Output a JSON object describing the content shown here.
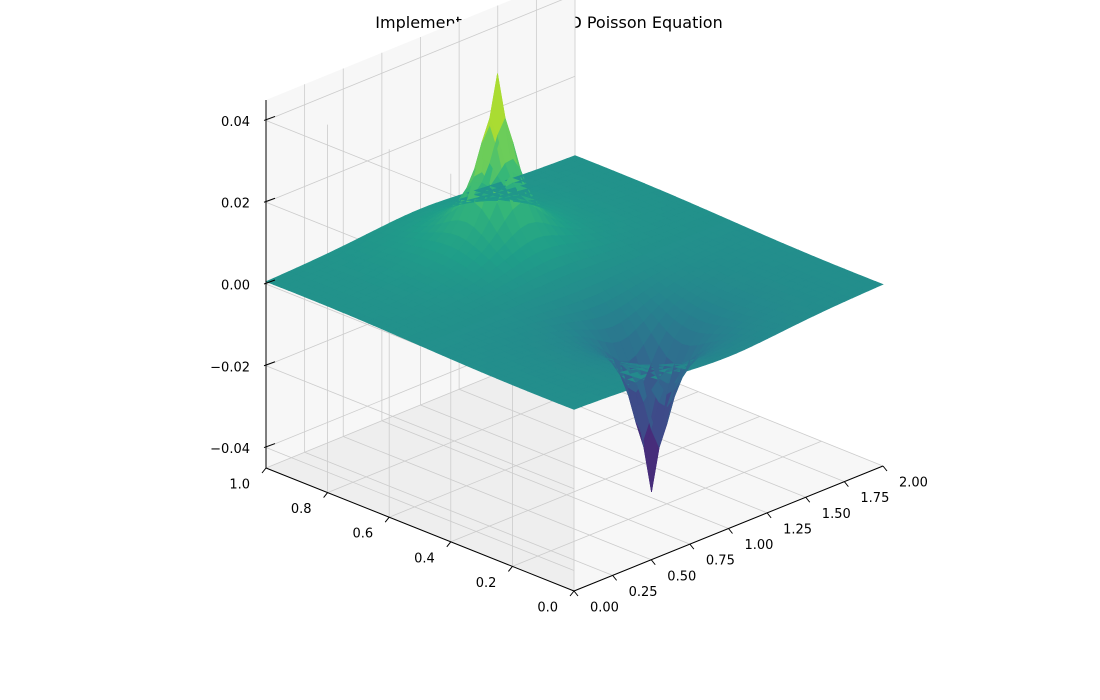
{
  "chart_data": {
    "type": "surface3d",
    "title": "Implementation of the 2D Poisson Equation",
    "xlabel": "",
    "ylabel": "",
    "zlabel": "",
    "x_ticks": [
      "0.00",
      "0.25",
      "0.50",
      "0.75",
      "1.00",
      "1.25",
      "1.50",
      "1.75",
      "2.00"
    ],
    "x_tick_values": [
      0,
      0.25,
      0.5,
      0.75,
      1.0,
      1.25,
      1.5,
      1.75,
      2.0
    ],
    "y_ticks": [
      "0.0",
      "0.2",
      "0.4",
      "0.6",
      "0.8",
      "1.0"
    ],
    "y_tick_values": [
      0,
      0.2,
      0.4,
      0.6,
      0.8,
      1.0
    ],
    "z_ticks": [
      "−0.04",
      "−0.02",
      "0.00",
      "0.02",
      "0.04"
    ],
    "z_tick_values": [
      -0.04,
      -0.02,
      0,
      0.02,
      0.04
    ],
    "xlim": [
      0,
      2
    ],
    "ylim": [
      0,
      1
    ],
    "zlim": [
      -0.045,
      0.045
    ],
    "colormap": "viridis",
    "surface": {
      "description": "Zero potential on most of the domain with a positive peak and a negative trough near the centre",
      "peak": {
        "x": 1.0,
        "y": 0.75,
        "z": 0.045
      },
      "trough": {
        "x": 1.0,
        "y": 0.25,
        "z": -0.045
      }
    },
    "grid": true,
    "colors": {
      "pane_light": "#f7f7f7",
      "pane_dark": "#eeeeee",
      "grid": "#cccccc",
      "axis": "#000000"
    }
  }
}
